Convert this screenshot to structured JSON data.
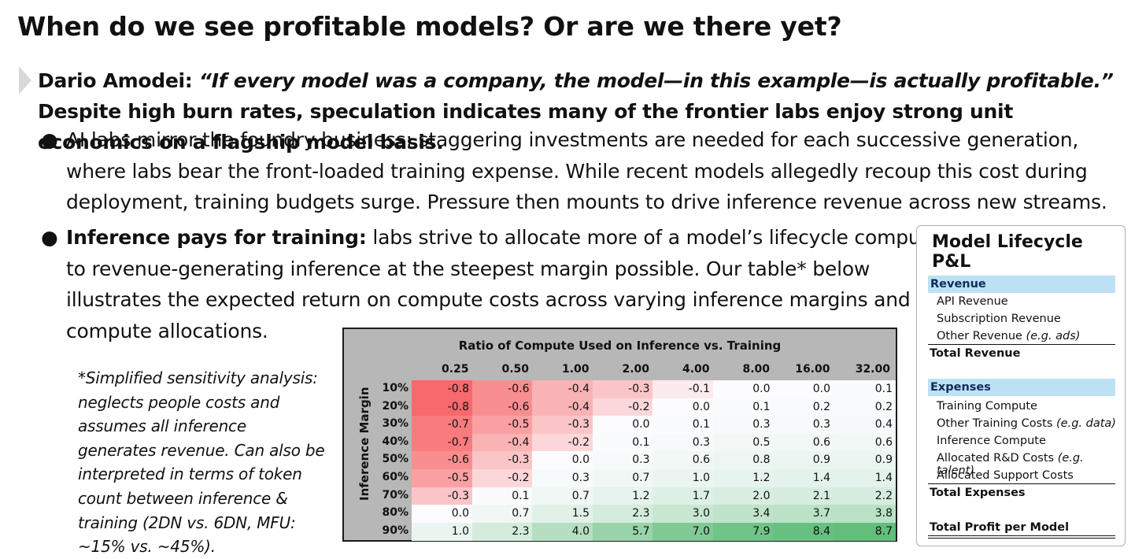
{
  "title": "When do we see profitable models? Or are we there yet?",
  "lead": {
    "speaker": "Dario Amodei: ",
    "quote": "“If every model was a company, the model—in this example—is actually profitable.”",
    "rest": " Despite high burn rates, speculation indicates many of the frontier labs enjoy strong unit economics on a flagship model basis."
  },
  "bullets": [
    {
      "lines": [
        "AI labs mirror the foundry business: staggering investments are needed for each successive generation,",
        "where labs bear the front-loaded training expense. While recent models allegedly recoup this cost during",
        "deployment, training budgets surge. Pressure then mounts to drive inference revenue across new streams."
      ]
    },
    {
      "bold": "Inference pays for training:",
      "lines": [
        " labs strive to allocate more of a model’s lifecycle compute",
        "to revenue-generating inference at the steepest margin possible. Our table* below",
        "illustrates the expected return on compute costs across varying inference margins and",
        "compute allocations."
      ]
    }
  ],
  "note": "*Simplified sensitivity analysis: neglects people costs and assumes all inference generates revenue. Can also be interpreted in terms of token count between inference & training (2DN vs. 6DN, MFU: ~15% vs. ~45%).",
  "chart_data": {
    "type": "heatmap",
    "title": "Ratio of Compute Used on Inference vs. Training",
    "ylabel": "Inference Margin",
    "x": [
      "0.25",
      "0.50",
      "1.00",
      "2.00",
      "4.00",
      "8.00",
      "16.00",
      "32.00"
    ],
    "y": [
      "10%",
      "20%",
      "30%",
      "40%",
      "50%",
      "60%",
      "70%",
      "80%",
      "90%"
    ],
    "values": [
      [
        -0.8,
        -0.6,
        -0.4,
        -0.3,
        -0.1,
        0.0,
        0.0,
        0.1
      ],
      [
        -0.8,
        -0.6,
        -0.4,
        -0.2,
        0.0,
        0.1,
        0.2,
        0.2
      ],
      [
        -0.7,
        -0.5,
        -0.3,
        0.0,
        0.1,
        0.3,
        0.3,
        0.4
      ],
      [
        -0.7,
        -0.4,
        -0.2,
        0.1,
        0.3,
        0.5,
        0.6,
        0.6
      ],
      [
        -0.6,
        -0.3,
        0.0,
        0.3,
        0.6,
        0.8,
        0.9,
        0.9
      ],
      [
        -0.5,
        -0.2,
        0.3,
        0.7,
        1.0,
        1.2,
        1.4,
        1.4
      ],
      [
        -0.3,
        0.1,
        0.7,
        1.2,
        1.7,
        2.0,
        2.1,
        2.2
      ],
      [
        0.0,
        0.7,
        1.5,
        2.3,
        3.0,
        3.4,
        3.7,
        3.8
      ],
      [
        1.0,
        2.3,
        4.0,
        5.7,
        7.0,
        7.9,
        8.4,
        8.7
      ]
    ],
    "colors": {
      "negative": "#f8696b",
      "neutral": "#fcfcff",
      "positive": "#63be7b"
    }
  },
  "pl": {
    "title": "Model Lifecycle P&L",
    "revenue_header": "Revenue",
    "revenue_items": [
      "API Revenue",
      "Subscription Revenue",
      "Other Revenue "
    ],
    "revenue_items_note": "(e.g. ads)",
    "total_revenue": "Total Revenue",
    "expenses_header": "Expenses",
    "expense_items": [
      {
        "label": "Training Compute",
        "note": ""
      },
      {
        "label": "Other Training Costs ",
        "note": "(e.g. data)"
      },
      {
        "label": "Inference Compute",
        "note": ""
      },
      {
        "label": "Allocated R&D Costs ",
        "note": "(e.g. talent)"
      },
      {
        "label": "Allocated Support Costs",
        "note": ""
      }
    ],
    "total_expenses": "Total Expenses",
    "total_profit": "Total Profit per Model"
  }
}
